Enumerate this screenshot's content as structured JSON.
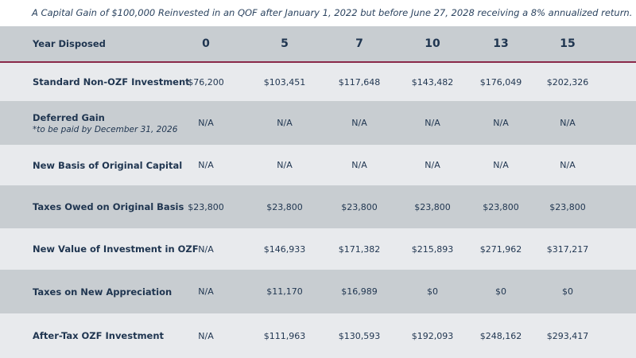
{
  "caption": "A Capital Gain of $100,000 Reinvested in an QOF after January 1, 2022 but before June 27, 2028 receiving a 8% annualized return.",
  "header": {
    "label": "Year Disposed",
    "years": [
      "0",
      "5",
      "7",
      "10",
      "13",
      "15"
    ]
  },
  "rows": [
    {
      "label": "Standard Non-OZF Investment",
      "values": [
        "$76,200",
        "$103,451",
        "$117,648",
        "$143,482",
        "$176,049",
        "$202,326"
      ]
    },
    {
      "label": "Deferred Gain",
      "sublabel": "*to be paid by December 31, 2026",
      "values": [
        "N/A",
        "N/A",
        "N/A",
        "N/A",
        "N/A",
        "N/A"
      ]
    },
    {
      "label": "New Basis of Original Capital",
      "values": [
        "N/A",
        "N/A",
        "N/A",
        "N/A",
        "N/A",
        "N/A"
      ]
    },
    {
      "label": "Taxes Owed on Original Basis",
      "values": [
        "$23,800",
        "$23,800",
        "$23,800",
        "$23,800",
        "$23,800",
        "$23,800"
      ]
    },
    {
      "label": "New Value of Investment in OZF",
      "values": [
        "N/A",
        "$146,933",
        "$171,382",
        "$215,893",
        "$271,962",
        "$317,217"
      ]
    },
    {
      "label": "Taxes on New Appreciation",
      "values": [
        "N/A",
        "$11,170",
        "$16,989",
        "$0",
        "$0",
        "$0"
      ]
    },
    {
      "label": "After-Tax OZF Investment",
      "values": [
        "N/A",
        "$111,963",
        "$130,593",
        "$192,093",
        "$248,162",
        "$293,417"
      ]
    }
  ],
  "colors": {
    "header_bg": "#c8cdd1",
    "row_light": "#e8eaed",
    "row_dark": "#c8cdd1",
    "accent_line": "#8a2a4a",
    "text": "#1f3550"
  }
}
